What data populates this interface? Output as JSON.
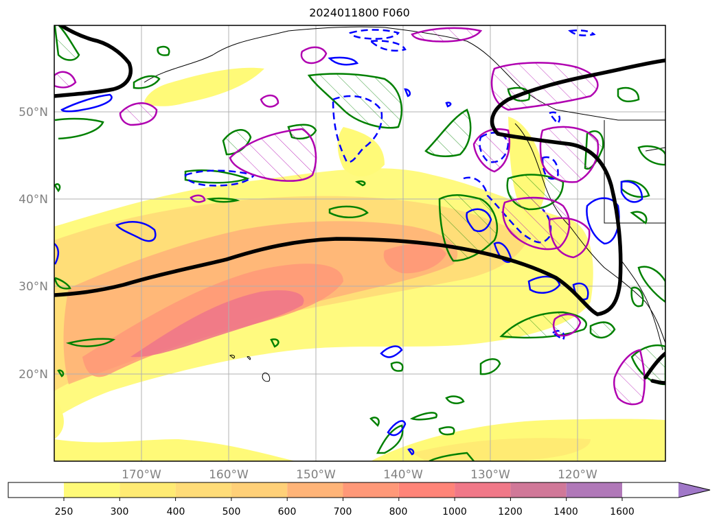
{
  "title": "2024011800 F060",
  "map": {
    "lat_labels": [
      "50°N",
      "40°N",
      "30°N",
      "20°N"
    ],
    "lon_labels": [
      "170°W",
      "160°W",
      "150°W",
      "140°W",
      "130°W",
      "120°W"
    ],
    "label_color": "#808080"
  },
  "colorbar": {
    "tick_labels": [
      "250",
      "300",
      "400",
      "500",
      "600",
      "700",
      "800",
      "1000",
      "1200",
      "1400",
      "1600"
    ],
    "colors": [
      "#ffffff",
      "#fffa78",
      "#ffeb73",
      "#ffdc78",
      "#ffd078",
      "#ffb478",
      "#ff9878",
      "#ff8478",
      "#f07888",
      "#d07898",
      "#b078b8",
      "#a078c8"
    ]
  },
  "legend_colors": {
    "ivt_contour": "#000000",
    "green_hatched": "#008000",
    "blue_contour": "#0000ff",
    "magenta_hatched": "#b000b0"
  }
}
